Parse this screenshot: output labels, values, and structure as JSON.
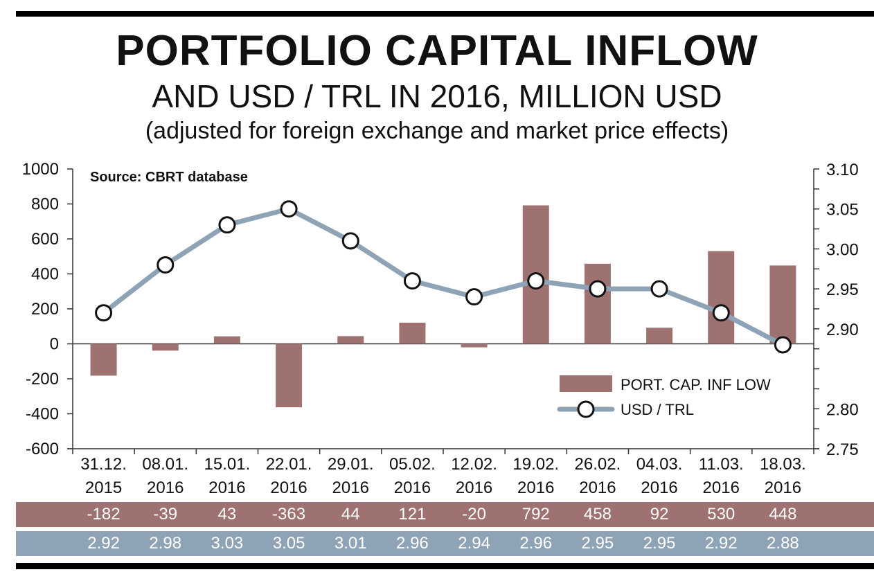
{
  "header": {
    "title": "PORTFOLIO CAPITAL INFLOW",
    "subtitle": "AND USD / TRL IN 2016, MILLION USD",
    "note": "(adjusted for foreign exchange and market price effects)"
  },
  "chart_data": {
    "type": "bar",
    "source": "Source: CBRT database",
    "categories": [
      [
        "31.12.",
        "2015"
      ],
      [
        "08.01.",
        "2016"
      ],
      [
        "15.01.",
        "2016"
      ],
      [
        "22.01.",
        "2016"
      ],
      [
        "29.01.",
        "2016"
      ],
      [
        "05.02.",
        "2016"
      ],
      [
        "12.02.",
        "2016"
      ],
      [
        "19.02.",
        "2016"
      ],
      [
        "26.02.",
        "2016"
      ],
      [
        "04.03.",
        "2016"
      ],
      [
        "11.03.",
        "2016"
      ],
      [
        "18.03.",
        "2016"
      ]
    ],
    "series": [
      {
        "name": "PORT. CAP. INF LOW",
        "type": "bar",
        "axis": "left",
        "color": "#9e7270",
        "values": [
          -182,
          -39,
          43,
          -363,
          44,
          121,
          -20,
          792,
          458,
          92,
          530,
          448
        ],
        "labels": [
          "-182",
          "-39",
          "43",
          "-363",
          "44",
          "121",
          "-20",
          "792",
          "458",
          "92",
          "530",
          "448"
        ]
      },
      {
        "name": "USD / TRL",
        "type": "line",
        "axis": "right",
        "color": "#8ea4b6",
        "values": [
          2.92,
          2.98,
          3.03,
          3.05,
          3.01,
          2.96,
          2.94,
          2.96,
          2.95,
          2.95,
          2.92,
          2.88
        ],
        "labels": [
          "2.92",
          "2.98",
          "3.03",
          "3.05",
          "3.01",
          "2.96",
          "2.94",
          "2.96",
          "2.95",
          "2.95",
          "2.92",
          "2.88"
        ]
      }
    ],
    "y_left": {
      "ylim": [
        -600,
        1000
      ],
      "ticks": [
        "1000",
        "800",
        "600",
        "400",
        "200",
        "0",
        "-200",
        "-400",
        "-600"
      ]
    },
    "y_right": {
      "ylim": [
        2.75,
        3.1
      ],
      "ticks": [
        "3.10",
        "3.05",
        "3.00",
        "2.95",
        "2.90",
        "2.80",
        "2.75"
      ]
    },
    "grid": false,
    "legend_position": "right"
  }
}
